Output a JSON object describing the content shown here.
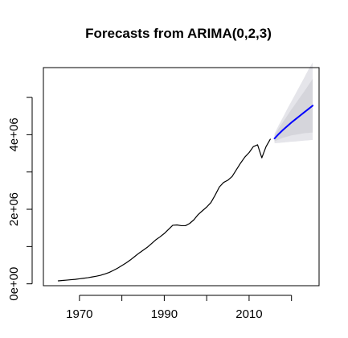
{
  "chart_data": {
    "type": "line",
    "title": "Forecasts from ARIMA(0,2,3)",
    "xlabel": "",
    "ylabel": "",
    "xlim": [
      1961.5,
      2026.5
    ],
    "ylim": [
      -50000,
      5800000
    ],
    "x_ticks": [
      {
        "value": 1970,
        "label": "1970"
      },
      {
        "value": 1980,
        "label": ""
      },
      {
        "value": 1990,
        "label": "1990"
      },
      {
        "value": 2000,
        "label": ""
      },
      {
        "value": 2010,
        "label": "2010"
      },
      {
        "value": 2020,
        "label": ""
      }
    ],
    "y_ticks": [
      {
        "value": 0,
        "label": "0e+00"
      },
      {
        "value": 1000000,
        "label": ""
      },
      {
        "value": 2000000,
        "label": "2e+06"
      },
      {
        "value": 3000000,
        "label": ""
      },
      {
        "value": 4000000,
        "label": "4e+06"
      },
      {
        "value": 5000000,
        "label": ""
      }
    ],
    "series": [
      {
        "name": "observed",
        "color": "#000000",
        "x": [
          1965,
          1966,
          1967,
          1968,
          1969,
          1970,
          1971,
          1972,
          1973,
          1974,
          1975,
          1976,
          1977,
          1978,
          1979,
          1980,
          1981,
          1982,
          1983,
          1984,
          1985,
          1986,
          1987,
          1988,
          1989,
          1990,
          1991,
          1992,
          1993,
          1994,
          1995,
          1996,
          1997,
          1998,
          1999,
          2000,
          2001,
          2002,
          2003,
          2004,
          2005,
          2006,
          2007,
          2008,
          2009,
          2010,
          2011,
          2012,
          2013,
          2014,
          2015
        ],
        "y": [
          80000,
          90000,
          100000,
          110000,
          120000,
          135000,
          150000,
          165000,
          185000,
          205000,
          230000,
          265000,
          305000,
          360000,
          420000,
          490000,
          560000,
          640000,
          730000,
          820000,
          900000,
          980000,
          1080000,
          1180000,
          1260000,
          1350000,
          1460000,
          1570000,
          1580000,
          1560000,
          1560000,
          1620000,
          1720000,
          1860000,
          1960000,
          2060000,
          2180000,
          2380000,
          2600000,
          2720000,
          2780000,
          2880000,
          3060000,
          3240000,
          3400000,
          3520000,
          3680000,
          3730000,
          3380000,
          3680000,
          3880000
        ]
      },
      {
        "name": "forecast",
        "color": "#0000FF",
        "x": [
          2016,
          2017,
          2018,
          2019,
          2020,
          2021,
          2022,
          2023,
          2024,
          2025
        ],
        "y": [
          3900000,
          4020000,
          4130000,
          4230000,
          4330000,
          4420000,
          4510000,
          4600000,
          4690000,
          4780000
        ]
      }
    ],
    "intervals": [
      {
        "name": "80%",
        "color": "#d5d5db",
        "x": [
          2016,
          2017,
          2018,
          2019,
          2020,
          2021,
          2022,
          2023,
          2024,
          2025
        ],
        "lower": [
          3820000,
          3870000,
          3920000,
          3950000,
          3980000,
          4000000,
          4020000,
          4040000,
          4050000,
          4060000
        ],
        "upper": [
          3980000,
          4170000,
          4340000,
          4510000,
          4680000,
          4840000,
          5000000,
          5160000,
          5330000,
          5500000
        ]
      },
      {
        "name": "95%",
        "color": "#e5e5ea",
        "x": [
          2016,
          2017,
          2018,
          2019,
          2020,
          2021,
          2022,
          2023,
          2024,
          2025
        ],
        "lower": [
          3770000,
          3780000,
          3790000,
          3800000,
          3810000,
          3820000,
          3830000,
          3840000,
          3850000,
          3860000
        ],
        "upper": [
          4030000,
          4260000,
          4470000,
          4690000,
          4900000,
          5110000,
          5320000,
          5530000,
          5750000,
          5940000
        ]
      }
    ]
  }
}
